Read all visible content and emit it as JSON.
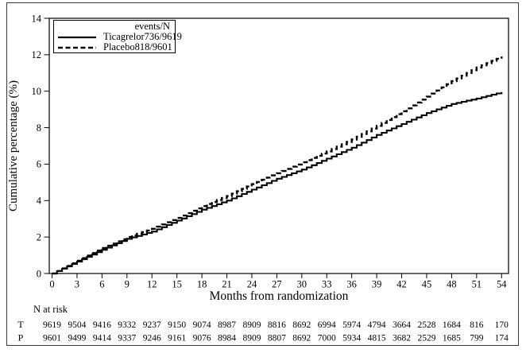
{
  "chart_data": {
    "type": "line",
    "step": true,
    "title": "",
    "xlabel": "Months from randomization",
    "ylabel": "Cumulative percentage (%)",
    "xlim": [
      0,
      54
    ],
    "ylim": [
      0,
      14
    ],
    "x_ticks": [
      0,
      3,
      6,
      9,
      12,
      15,
      18,
      21,
      24,
      27,
      30,
      33,
      36,
      39,
      42,
      45,
      48,
      51,
      54
    ],
    "y_ticks": [
      0,
      2,
      4,
      6,
      8,
      10,
      12,
      14
    ],
    "grid": false,
    "legend": {
      "position": "top-left",
      "header": "events/N"
    },
    "x": [
      0,
      3,
      6,
      9,
      12,
      15,
      18,
      21,
      24,
      27,
      30,
      33,
      36,
      39,
      42,
      45,
      48,
      51,
      54
    ],
    "series": [
      {
        "name": "Ticagrelor",
        "events_n": "736/9619",
        "line_style": "solid",
        "color": "#000000",
        "values": [
          0,
          0.65,
          1.3,
          1.9,
          2.3,
          2.9,
          3.5,
          4.0,
          4.6,
          5.2,
          5.7,
          6.3,
          6.9,
          7.6,
          8.2,
          8.8,
          9.3,
          9.6,
          9.95
        ]
      },
      {
        "name": "Placebo",
        "events_n": "818/9601",
        "line_style": "dashed",
        "color": "#000000",
        "values": [
          0,
          0.7,
          1.4,
          2.0,
          2.45,
          3.05,
          3.7,
          4.25,
          4.9,
          5.5,
          6.1,
          6.7,
          7.35,
          8.1,
          8.9,
          9.7,
          10.55,
          11.3,
          11.9
        ]
      }
    ],
    "n_at_risk": {
      "title": "N at risk",
      "rows": [
        {
          "label": "T",
          "values": [
            9619,
            9504,
            9416,
            9332,
            9237,
            9150,
            9074,
            8987,
            8909,
            8816,
            8692,
            6994,
            5974,
            4794,
            3664,
            2528,
            1684,
            816,
            170
          ]
        },
        {
          "label": "P",
          "values": [
            9601,
            9499,
            9414,
            9337,
            9246,
            9161,
            9076,
            8984,
            8909,
            8807,
            8692,
            7000,
            5934,
            4815,
            3682,
            2529,
            1685,
            799,
            174
          ]
        }
      ]
    }
  },
  "colors": {
    "foreground": "#000000",
    "background": "#ffffff"
  }
}
